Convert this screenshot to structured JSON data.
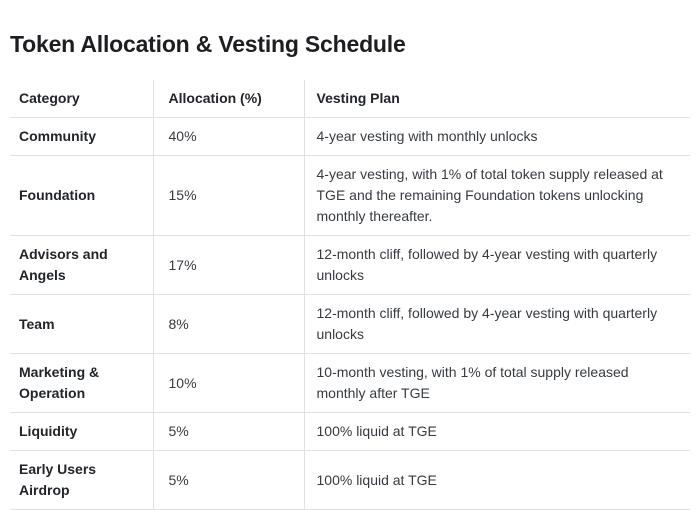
{
  "page": {
    "title": "Token Allocation & Vesting Schedule"
  },
  "colors": {
    "background": "#ffffff",
    "title_text": "#1c1e21",
    "header_text": "#212529",
    "body_text": "#363b41",
    "border": "#dee2e6"
  },
  "table": {
    "columns": [
      {
        "label": "Category"
      },
      {
        "label": "Allocation (%)"
      },
      {
        "label": "Vesting Plan"
      }
    ],
    "rows": [
      {
        "category": "Community",
        "allocation": "40%",
        "vesting_plan": "4-year vesting with monthly unlocks"
      },
      {
        "category": "Foundation",
        "allocation": "15%",
        "vesting_plan": "4-year vesting, with 1% of total token supply released at TGE and the remaining Foundation tokens unlocking monthly thereafter."
      },
      {
        "category": "Advisors and Angels",
        "allocation": "17%",
        "vesting_plan": "12-month cliff, followed by 4-year vesting with quarterly unlocks"
      },
      {
        "category": "Team",
        "allocation": "8%",
        "vesting_plan": "12-month cliff, followed by 4-year vesting with quarterly unlocks"
      },
      {
        "category": "Marketing & Operation",
        "allocation": "10%",
        "vesting_plan": "10-month vesting, with 1% of total supply released monthly after TGE"
      },
      {
        "category": "Liquidity",
        "allocation": "5%",
        "vesting_plan": "100% liquid at TGE"
      },
      {
        "category": "Early Users Airdrop",
        "allocation": "5%",
        "vesting_plan": "100% liquid at TGE"
      }
    ]
  }
}
